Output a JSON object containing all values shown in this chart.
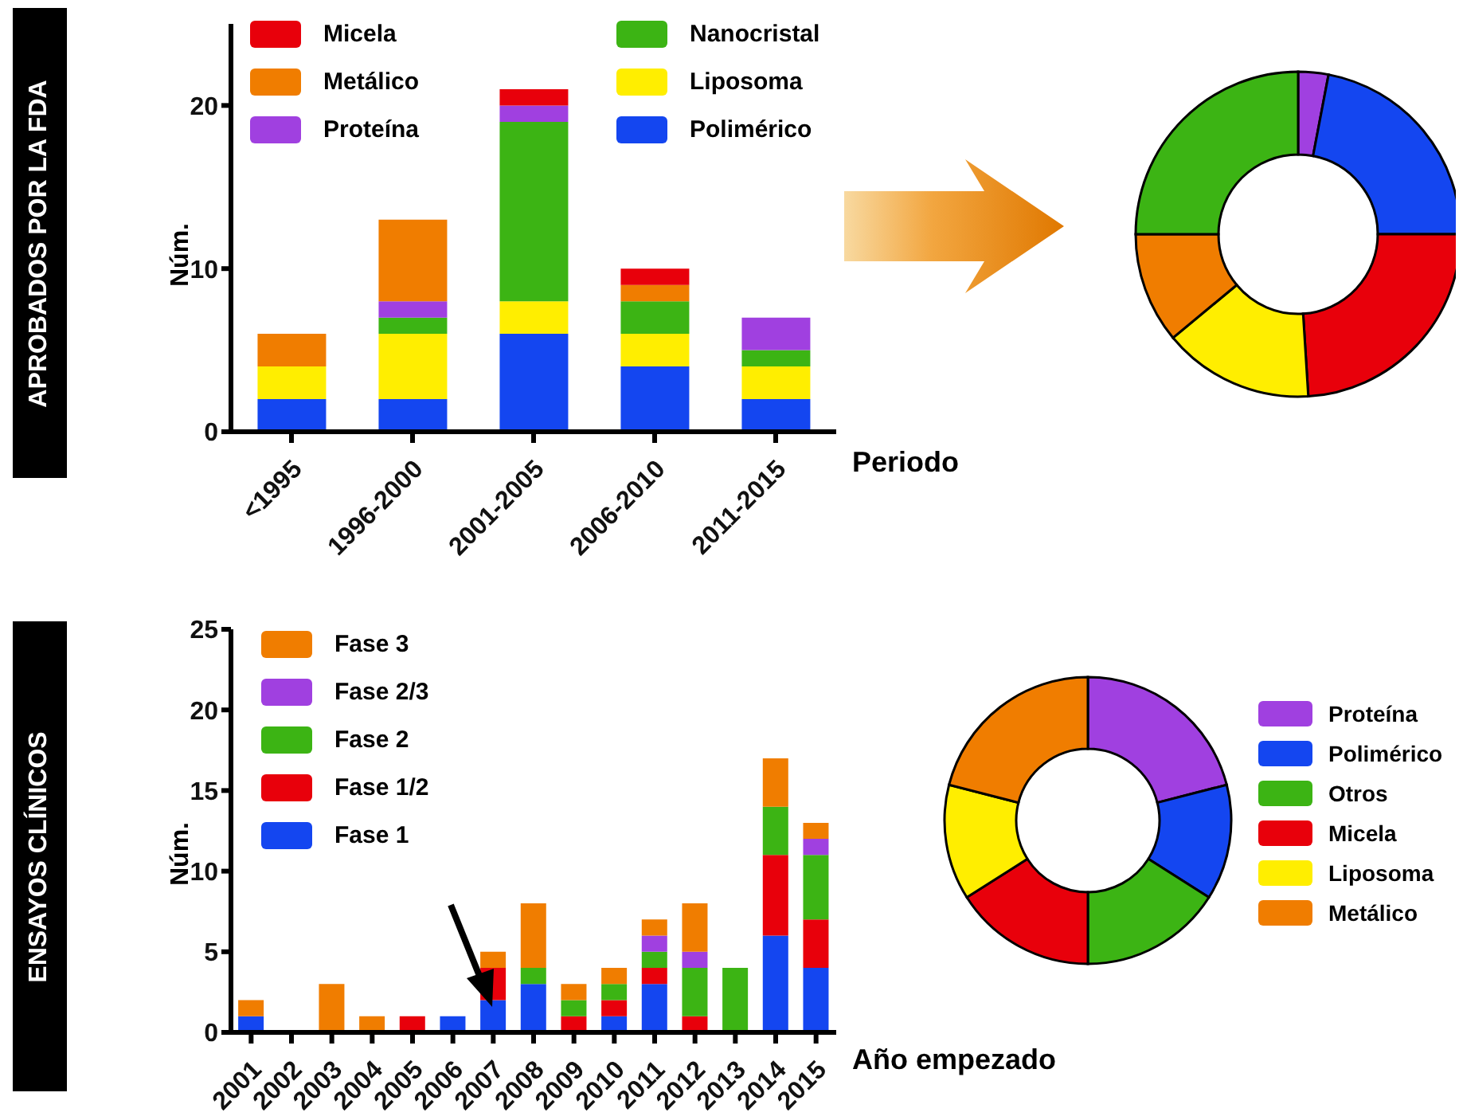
{
  "chart_data": [
    {
      "type": "bar",
      "title": "APROBADOS POR LA FDA",
      "xlabel": "Periodo",
      "ylabel": "Núm.",
      "stacked": true,
      "legend": "top left",
      "grid": false,
      "categories": [
        "<1995",
        "1996-2000",
        "2001-2005",
        "2006-2010",
        "2011-2015"
      ],
      "ylim": [
        0,
        25
      ],
      "yticks": [
        0,
        10,
        20
      ],
      "series": [
        {
          "name": "Polimérico",
          "color": "#1446f0",
          "values": [
            2,
            2,
            6,
            4,
            2
          ]
        },
        {
          "name": "Liposoma",
          "color": "#ffee00",
          "values": [
            2,
            4,
            2,
            2,
            2
          ]
        },
        {
          "name": "Nanocristal",
          "color": "#3cb414",
          "values": [
            0,
            1,
            11,
            2,
            1
          ]
        },
        {
          "name": "Proteína",
          "color": "#a040e0",
          "values": [
            0,
            1,
            1,
            0,
            2
          ]
        },
        {
          "name": "Metálico",
          "color": "#f07d00",
          "values": [
            2,
            5,
            0,
            1,
            0
          ]
        },
        {
          "name": "Micela",
          "color": "#e8000b",
          "values": [
            0,
            0,
            1,
            1,
            0
          ]
        }
      ]
    },
    {
      "type": "donut",
      "legend": false,
      "categories": [
        null,
        null,
        null,
        null,
        null,
        null
      ],
      "values": [
        3,
        22,
        24,
        15,
        11,
        25
      ],
      "colors": [
        "#a040e0",
        "#1446f0",
        "#e8000b",
        "#ffee00",
        "#f07d00",
        "#3cb414"
      ]
    },
    {
      "type": "bar",
      "title": "ENSAYOS CLÍNICOS",
      "xlabel": "Año empezado",
      "ylabel": "Núm.",
      "stacked": true,
      "legend": "top left",
      "grid": false,
      "categories": [
        "2001",
        "2002",
        "2003",
        "2004",
        "2005",
        "2006",
        "2007",
        "2008",
        "2009",
        "2010",
        "2011",
        "2012",
        "2013",
        "2014",
        "2015"
      ],
      "ylim": [
        0,
        25
      ],
      "yticks": [
        0,
        5,
        10,
        15,
        20,
        25
      ],
      "series": [
        {
          "name": "Fase 1",
          "color": "#1446f0",
          "values": [
            1,
            0,
            0,
            0,
            0,
            1,
            2,
            3,
            0,
            1,
            3,
            0,
            0,
            6,
            4
          ]
        },
        {
          "name": "Fase 1/2",
          "color": "#e8000b",
          "values": [
            0,
            0,
            0,
            0,
            1,
            0,
            2,
            0,
            1,
            1,
            1,
            1,
            0,
            5,
            3
          ]
        },
        {
          "name": "Fase 2",
          "color": "#3cb414",
          "values": [
            0,
            0,
            0,
            0,
            0,
            0,
            0,
            1,
            1,
            1,
            1,
            3,
            4,
            3,
            4
          ]
        },
        {
          "name": "Fase 2/3",
          "color": "#a040e0",
          "values": [
            0,
            0,
            0,
            0,
            0,
            0,
            0,
            0,
            0,
            0,
            1,
            1,
            0,
            0,
            1
          ]
        },
        {
          "name": "Fase 3",
          "color": "#f07d00",
          "values": [
            1,
            0,
            3,
            1,
            0,
            0,
            1,
            4,
            1,
            1,
            1,
            3,
            0,
            3,
            1
          ]
        }
      ]
    },
    {
      "type": "donut",
      "legend": "right",
      "categories": [
        "Proteína",
        "Polimérico",
        "Otros",
        "Micela",
        "Liposoma",
        "Metálico"
      ],
      "values": [
        21,
        13,
        16,
        16,
        13,
        21
      ],
      "colors": [
        "#a040e0",
        "#1446f0",
        "#3cb414",
        "#e8000b",
        "#ffee00",
        "#f07d00"
      ]
    }
  ]
}
